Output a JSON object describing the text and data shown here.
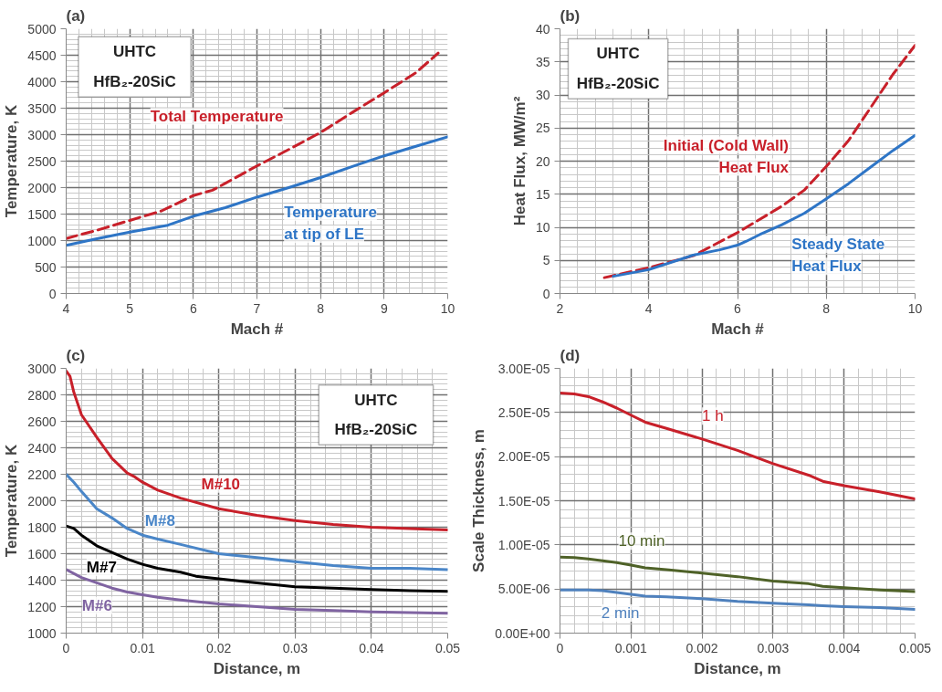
{
  "chart_data": [
    {
      "type": "line",
      "title": "(a)",
      "xlabel": "Mach #",
      "ylabel": "Temperature, K",
      "annotations": [
        "UHTC",
        "HfB₂-20SiC"
      ],
      "xlim": [
        4,
        10
      ],
      "ylim": [
        0,
        5000
      ],
      "xticks": [
        4,
        5,
        6,
        7,
        8,
        9,
        10
      ],
      "yticks": [
        0,
        500,
        1000,
        1500,
        2000,
        2500,
        3000,
        3500,
        4000,
        4500,
        5000
      ],
      "grid": true,
      "series": [
        {
          "name": "Total Temperature",
          "color": "#c8202a",
          "line_style": "dashed",
          "x": [
            4,
            4.5,
            5,
            5.5,
            6,
            6.3,
            6.5,
            7,
            7.5,
            8,
            8.5,
            9,
            9.5,
            9.85
          ],
          "values": [
            1040,
            1200,
            1380,
            1560,
            1850,
            1950,
            2080,
            2410,
            2720,
            3040,
            3420,
            3790,
            4170,
            4540
          ]
        },
        {
          "name": "Temperature at tip of LE",
          "color": "#2e75c6",
          "line_style": "solid",
          "x": [
            4,
            4.5,
            5,
            5.6,
            6,
            6.5,
            7,
            7.5,
            8,
            8.5,
            9,
            9.5,
            10
          ],
          "values": [
            910,
            1040,
            1160,
            1290,
            1460,
            1620,
            1820,
            2000,
            2190,
            2400,
            2600,
            2780,
            2960
          ]
        }
      ]
    },
    {
      "type": "line",
      "title": "(b)",
      "xlabel": "Mach #",
      "ylabel": "Heat Flux, MW/m²",
      "annotations": [
        "UHTC",
        "HfB₂-20SiC"
      ],
      "xlim": [
        2,
        10
      ],
      "ylim": [
        0,
        40
      ],
      "xticks": [
        2,
        4,
        6,
        8,
        10
      ],
      "yticks": [
        0,
        5,
        10,
        15,
        20,
        25,
        30,
        35,
        40
      ],
      "grid": true,
      "series": [
        {
          "name": "Initial (Cold Wall) Heat Flux",
          "color": "#c8202a",
          "line_style": "dashed",
          "x": [
            3,
            4,
            5,
            6,
            7,
            7.5,
            8,
            8.5,
            9,
            9.5,
            10
          ],
          "values": [
            2.4,
            3.9,
            5.7,
            9.2,
            13.2,
            15.6,
            19.2,
            23.1,
            28.1,
            33.1,
            37.5
          ]
        },
        {
          "name": "Steady State Heat Flux",
          "color": "#2e75c6",
          "line_style": "solid",
          "x": [
            3.2,
            4,
            5,
            5.6,
            6,
            6.2,
            6.5,
            7,
            7.5,
            8,
            8.5,
            9,
            9.5,
            10
          ],
          "values": [
            2.6,
            3.6,
            5.8,
            6.6,
            7.3,
            7.9,
            8.9,
            10.4,
            12.1,
            14.3,
            16.6,
            19.1,
            21.6,
            23.9
          ]
        }
      ]
    },
    {
      "type": "line",
      "title": "(c)",
      "xlabel": "Distance, m",
      "ylabel": "Temperature, K",
      "annotations": [
        "UHTC",
        "HfB₂-20SiC"
      ],
      "xlim": [
        0,
        0.05
      ],
      "ylim": [
        1000,
        3000
      ],
      "xticks": [
        0,
        0.01,
        0.02,
        0.03,
        0.04,
        0.05
      ],
      "yticks": [
        1000,
        1200,
        1400,
        1600,
        1800,
        2000,
        2200,
        2400,
        2600,
        2800,
        3000
      ],
      "grid": true,
      "series": [
        {
          "name": "M#10",
          "color": "#c8202a",
          "line_style": "solid",
          "x": [
            0,
            0.0005,
            0.001,
            0.002,
            0.004,
            0.006,
            0.008,
            0.009,
            0.01,
            0.012,
            0.015,
            0.02,
            0.025,
            0.03,
            0.035,
            0.04,
            0.045,
            0.05
          ],
          "values": [
            2980,
            2940,
            2820,
            2650,
            2480,
            2320,
            2210,
            2180,
            2140,
            2080,
            2020,
            1940,
            1890,
            1850,
            1820,
            1800,
            1790,
            1780
          ]
        },
        {
          "name": "M#8",
          "color": "#4a86c8",
          "line_style": "solid",
          "x": [
            0,
            0.001,
            0.002,
            0.004,
            0.006,
            0.008,
            0.01,
            0.012,
            0.015,
            0.02,
            0.025,
            0.03,
            0.035,
            0.04,
            0.045,
            0.05
          ],
          "values": [
            2200,
            2140,
            2070,
            1940,
            1870,
            1790,
            1740,
            1710,
            1670,
            1600,
            1570,
            1540,
            1510,
            1490,
            1490,
            1480
          ]
        },
        {
          "name": "M#7",
          "color": "#000000",
          "line_style": "solid",
          "x": [
            0,
            0.001,
            0.002,
            0.004,
            0.006,
            0.008,
            0.01,
            0.012,
            0.015,
            0.017,
            0.02,
            0.025,
            0.03,
            0.035,
            0.04,
            0.045,
            0.05
          ],
          "values": [
            1810,
            1790,
            1740,
            1660,
            1610,
            1560,
            1520,
            1490,
            1460,
            1430,
            1410,
            1380,
            1350,
            1340,
            1330,
            1320,
            1315
          ]
        },
        {
          "name": "M#6",
          "color": "#8064a2",
          "line_style": "solid",
          "x": [
            0,
            0.002,
            0.004,
            0.006,
            0.008,
            0.01,
            0.012,
            0.015,
            0.02,
            0.025,
            0.03,
            0.035,
            0.04,
            0.045,
            0.05
          ],
          "values": [
            1480,
            1420,
            1380,
            1340,
            1310,
            1290,
            1270,
            1250,
            1220,
            1200,
            1180,
            1170,
            1160,
            1155,
            1150
          ]
        }
      ]
    },
    {
      "type": "line",
      "title": "(d)",
      "xlabel": "Distance, m",
      "ylabel": "Scale Thickness, m",
      "xlim": [
        0,
        0.005
      ],
      "ylim": [
        0,
        3e-05
      ],
      "xticks": [
        0,
        0.001,
        0.002,
        0.003,
        0.004,
        0.005
      ],
      "yticks": [
        {
          "value": 0,
          "label": "0.00E+00"
        },
        {
          "value": 5e-06,
          "label": "5.00E-06"
        },
        {
          "value": 1e-05,
          "label": "1.00E-05"
        },
        {
          "value": 1.5e-05,
          "label": "1.50E-05"
        },
        {
          "value": 2e-05,
          "label": "2.00E-05"
        },
        {
          "value": 2.5e-05,
          "label": "2.50E-05"
        },
        {
          "value": 3e-05,
          "label": "3.00E-05"
        }
      ],
      "grid": true,
      "series": [
        {
          "name": "1 h",
          "color": "#c8202a",
          "line_style": "solid",
          "x": [
            0,
            0.0002,
            0.0004,
            0.0006,
            0.0008,
            0.001,
            0.0012,
            0.0015,
            0.002,
            0.0025,
            0.003,
            0.0035,
            0.0037,
            0.004,
            0.0045,
            0.005
          ],
          "values": [
            2.72e-05,
            2.71e-05,
            2.68e-05,
            2.62e-05,
            2.55e-05,
            2.47e-05,
            2.39e-05,
            2.32e-05,
            2.2e-05,
            2.07e-05,
            1.92e-05,
            1.79e-05,
            1.72e-05,
            1.67e-05,
            1.6e-05,
            1.52e-05
          ]
        },
        {
          "name": "10 min",
          "color": "#4f6228",
          "line_style": "solid",
          "x": [
            0,
            0.0002,
            0.0004,
            0.0006,
            0.0008,
            0.001,
            0.0012,
            0.0015,
            0.002,
            0.0025,
            0.003,
            0.0035,
            0.0037,
            0.004,
            0.0045,
            0.005
          ],
          "values": [
            8.6e-06,
            8.55e-06,
            8.4e-06,
            8.2e-06,
            8e-06,
            7.7e-06,
            7.4e-06,
            7.2e-06,
            6.8e-06,
            6.4e-06,
            5.9e-06,
            5.6e-06,
            5.3e-06,
            5.15e-06,
            4.9e-06,
            4.7e-06
          ]
        },
        {
          "name": "2 min",
          "color": "#4f81bd",
          "line_style": "solid",
          "x": [
            0,
            0.0004,
            0.0006,
            0.0008,
            0.001,
            0.0012,
            0.0015,
            0.002,
            0.0025,
            0.003,
            0.0035,
            0.0037,
            0.004,
            0.0045,
            0.005
          ],
          "values": [
            4.9e-06,
            4.9e-06,
            4.8e-06,
            4.6e-06,
            4.4e-06,
            4.2e-06,
            4.1e-06,
            3.9e-06,
            3.6e-06,
            3.4e-06,
            3.2e-06,
            3.1e-06,
            3e-06,
            2.9e-06,
            2.7e-06
          ]
        }
      ]
    }
  ]
}
